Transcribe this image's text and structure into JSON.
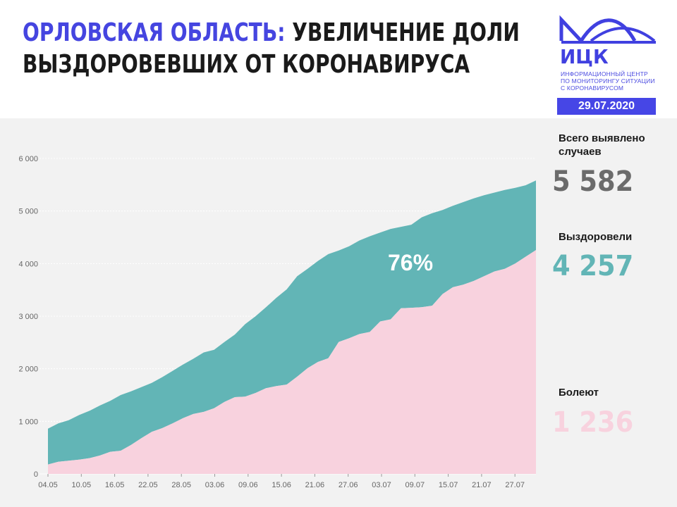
{
  "header": {
    "title_accent": "ОРЛОВСКАЯ ОБЛАСТЬ:",
    "title_line1_rest": " УВЕЛИЧЕНИЕ ДОЛИ",
    "title_line2": "ВЫЗДОРОВЕВШИХ ОТ КОРОНАВИРУСА",
    "date": "29.07.2020"
  },
  "logo": {
    "name": "ИЦК",
    "sub1": "ИНФОРМАЦИОННЫЙ ЦЕНТР",
    "sub2": "ПО МОНИТОРИНГУ СИТУАЦИИ",
    "sub3": "С КОРОНАВИРУСОМ"
  },
  "stats": {
    "total_label1": "Всего выявлено",
    "total_label2": "случаев",
    "total_value": "5 582",
    "recovered_label": "Выздоровели",
    "recovered_value": "4 257",
    "sick_label": "Болеют",
    "sick_value": "1 236"
  },
  "colors": {
    "recovered": "#62b5b6",
    "sick": "#f8d2de",
    "accent": "#4646e6",
    "total_text": "#6b6b6b"
  },
  "chart_data": {
    "type": "area",
    "stacked": true,
    "ylim": [
      0,
      6000
    ],
    "yticks": [
      0,
      1000,
      2000,
      3000,
      4000,
      5000,
      6000
    ],
    "ytick_labels": [
      "0",
      "1 000",
      "2 000",
      "3 000",
      "4 000",
      "5 000",
      "6 000"
    ],
    "xtick_labels": [
      "04.05",
      "10.05",
      "16.05",
      "22.05",
      "28.05",
      "03.06",
      "09.06",
      "15.06",
      "21.06",
      "27.06",
      "03.07",
      "09.07",
      "15.07",
      "21.07",
      "27.07"
    ],
    "grid": true,
    "annotation": "76%",
    "x_start": "04.05",
    "x_end": "29.07",
    "total": [
      860,
      960,
      1020,
      1120,
      1200,
      1300,
      1390,
      1500,
      1570,
      1650,
      1730,
      1840,
      1960,
      2080,
      2190,
      2310,
      2360,
      2510,
      2650,
      2850,
      3000,
      3170,
      3350,
      3510,
      3760,
      3900,
      4050,
      4180,
      4250,
      4330,
      4440,
      4520,
      4590,
      4660,
      4700,
      4740,
      4880,
      4960,
      5020,
      5100,
      5170,
      5240,
      5300,
      5350,
      5400,
      5440,
      5490,
      5582
    ],
    "recovered": [
      180,
      230,
      250,
      270,
      300,
      350,
      420,
      440,
      550,
      680,
      800,
      870,
      960,
      1060,
      1140,
      1180,
      1250,
      1370,
      1460,
      1470,
      1540,
      1630,
      1670,
      1700,
      1850,
      2010,
      2130,
      2200,
      2510,
      2580,
      2660,
      2700,
      2900,
      2940,
      3150,
      3160,
      3170,
      3200,
      3420,
      3550,
      3600,
      3670,
      3760,
      3850,
      3900,
      4000,
      4130,
      4257
    ]
  }
}
